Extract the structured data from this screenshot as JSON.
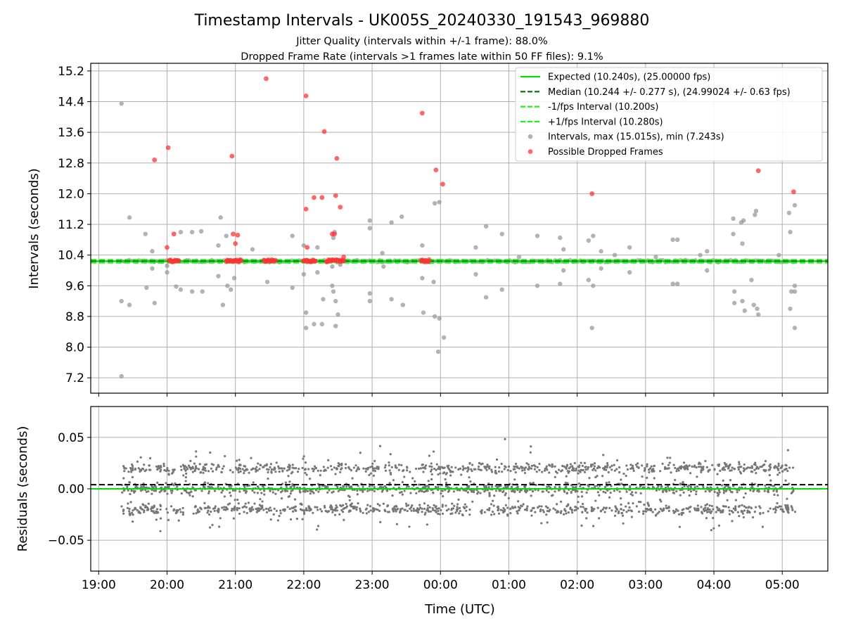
{
  "chart_data": [
    {
      "type": "scatter",
      "title": "Timestamp Intervals - UK005S_20240330_191543_969880",
      "subtitle_1": "Jitter Quality (intervals within +/-1 frame): 88.0%",
      "subtitle_2": "Dropped Frame Rate (intervals >1 frames late within 50 FF files): 9.1%",
      "xlabel": "",
      "ylabel": "Intervals (seconds)",
      "xlim": [
        "18:53",
        "05:40"
      ],
      "ylim": [
        6.8,
        15.4
      ],
      "yticks": [
        "7.2",
        "8.0",
        "8.8",
        "9.6",
        "10.4",
        "11.2",
        "12.0",
        "12.8",
        "13.6",
        "14.4",
        "15.2"
      ],
      "ytick_values": [
        7.2,
        8.0,
        8.8,
        9.6,
        10.4,
        11.2,
        12.0,
        12.8,
        13.6,
        14.4,
        15.2
      ],
      "grid": true,
      "legend_position": "top-right",
      "reference_lines": [
        {
          "name": "Expected (10.240s), (25.00000 fps)",
          "y": 10.24,
          "color": "#00e000",
          "style": "solid"
        },
        {
          "name": "Median (10.244 +/- 0.277 s), (24.99024 +/- 0.63 fps)",
          "y": 10.244,
          "color": "#007000",
          "style": "dashed"
        },
        {
          "name": "-1/fps Interval (10.200s)",
          "y": 10.2,
          "color": "#22ee22",
          "style": "dashed"
        },
        {
          "name": "+1/fps Interval (10.280s)",
          "y": 10.28,
          "color": "#22ee22",
          "style": "dashed"
        }
      ],
      "series": [
        {
          "name": "Intervals, max (15.015s), min (7.243s)",
          "color": "#999999",
          "points": [
            [
              "19:20",
              14.35
            ],
            [
              "19:20",
              7.24
            ],
            [
              "19:20",
              9.2
            ],
            [
              "19:27",
              11.38
            ],
            [
              "19:27",
              9.1
            ],
            [
              "19:41",
              10.95
            ],
            [
              "19:42",
              9.55
            ],
            [
              "19:47",
              10.5
            ],
            [
              "19:47",
              10.05
            ],
            [
              "19:49",
              9.15
            ],
            [
              "20:00",
              10.12
            ],
            [
              "20:00",
              9.95
            ],
            [
              "20:08",
              9.58
            ],
            [
              "20:12",
              11.0
            ],
            [
              "20:12",
              9.5
            ],
            [
              "20:22",
              11.0
            ],
            [
              "20:22",
              9.45
            ],
            [
              "20:30",
              11.02
            ],
            [
              "20:31",
              9.45
            ],
            [
              "20:45",
              10.65
            ],
            [
              "20:45",
              9.85
            ],
            [
              "20:47",
              11.38
            ],
            [
              "20:49",
              9.1
            ],
            [
              "20:52",
              10.9
            ],
            [
              "20:53",
              9.6
            ],
            [
              "20:56",
              9.5
            ],
            [
              "20:59",
              9.8
            ],
            [
              "21:15",
              10.55
            ],
            [
              "21:28",
              9.7
            ],
            [
              "21:50",
              10.9
            ],
            [
              "21:50",
              9.55
            ],
            [
              "22:00",
              10.65
            ],
            [
              "22:00",
              9.9
            ],
            [
              "22:02",
              8.9
            ],
            [
              "22:02",
              8.5
            ],
            [
              "22:09",
              8.6
            ],
            [
              "22:12",
              10.6
            ],
            [
              "22:12",
              9.95
            ],
            [
              "22:16",
              8.6
            ],
            [
              "22:17",
              9.25
            ],
            [
              "22:25",
              10.1
            ],
            [
              "22:25",
              9.6
            ],
            [
              "22:26",
              10.85
            ],
            [
              "22:26",
              9.45
            ],
            [
              "22:27",
              11.0
            ],
            [
              "22:28",
              9.2
            ],
            [
              "22:28",
              8.55
            ],
            [
              "22:30",
              8.85
            ],
            [
              "22:32",
              10.15
            ],
            [
              "22:58",
              11.3
            ],
            [
              "22:58",
              11.1
            ],
            [
              "22:58",
              9.4
            ],
            [
              "22:58",
              9.2
            ],
            [
              "23:09",
              10.45
            ],
            [
              "23:10",
              10.1
            ],
            [
              "23:17",
              11.25
            ],
            [
              "23:17",
              9.25
            ],
            [
              "23:26",
              11.4
            ],
            [
              "23:27",
              9.1
            ],
            [
              "23:44",
              10.65
            ],
            [
              "23:44",
              9.8
            ],
            [
              "23:45",
              8.9
            ],
            [
              "23:54",
              9.7
            ],
            [
              "23:55",
              11.75
            ],
            [
              "23:55",
              8.8
            ],
            [
              "23:58",
              7.88
            ],
            [
              "23:59",
              11.78
            ],
            [
              "23:59",
              8.75
            ],
            [
              "00:03",
              8.25
            ],
            [
              "00:31",
              10.6
            ],
            [
              "00:31",
              9.9
            ],
            [
              "00:40",
              11.15
            ],
            [
              "00:40",
              9.3
            ],
            [
              "00:54",
              10.95
            ],
            [
              "00:54",
              9.5
            ],
            [
              "01:09",
              10.35
            ],
            [
              "01:25",
              10.9
            ],
            [
              "01:25",
              9.6
            ],
            [
              "01:45",
              10.85
            ],
            [
              "01:45",
              9.65
            ],
            [
              "01:48",
              10.55
            ],
            [
              "01:48",
              10.0
            ],
            [
              "02:10",
              10.78
            ],
            [
              "02:10",
              9.75
            ],
            [
              "02:14",
              10.9
            ],
            [
              "02:14",
              9.6
            ],
            [
              "02:13",
              8.5
            ],
            [
              "02:21",
              10.5
            ],
            [
              "02:21",
              10.05
            ],
            [
              "02:33",
              10.4
            ],
            [
              "02:46",
              10.6
            ],
            [
              "02:46",
              9.95
            ],
            [
              "03:09",
              10.35
            ],
            [
              "03:24",
              10.8
            ],
            [
              "03:24",
              9.65
            ],
            [
              "03:28",
              10.8
            ],
            [
              "03:28",
              9.65
            ],
            [
              "03:48",
              10.4
            ],
            [
              "03:54",
              10.5
            ],
            [
              "03:54",
              10.0
            ],
            [
              "04:17",
              11.35
            ],
            [
              "04:17",
              10.95
            ],
            [
              "04:18",
              9.45
            ],
            [
              "04:18",
              9.15
            ],
            [
              "04:24",
              11.25
            ],
            [
              "04:25",
              10.7
            ],
            [
              "04:25",
              9.2
            ],
            [
              "04:26",
              11.3
            ],
            [
              "04:27",
              8.95
            ],
            [
              "04:33",
              9.75
            ],
            [
              "04:35",
              9.1
            ],
            [
              "04:36",
              11.45
            ],
            [
              "04:37",
              11.55
            ],
            [
              "04:38",
              9.0
            ],
            [
              "04:39",
              8.85
            ],
            [
              "04:57",
              10.4
            ],
            [
              "05:06",
              11.5
            ],
            [
              "05:07",
              11.0
            ],
            [
              "05:07",
              9.0
            ],
            [
              "05:08",
              9.45
            ],
            [
              "05:11",
              11.7
            ],
            [
              "05:11",
              9.6
            ],
            [
              "05:11",
              9.45
            ],
            [
              "05:11",
              8.5
            ]
          ]
        },
        {
          "name": "Possible Dropped Frames",
          "color": "#ff3333",
          "points": [
            [
              "19:49",
              12.88
            ],
            [
              "20:00",
              10.6
            ],
            [
              "20:01",
              13.2
            ],
            [
              "20:06",
              10.95
            ],
            [
              "20:57",
              12.98
            ],
            [
              "20:58",
              10.95
            ],
            [
              "21:00",
              10.7
            ],
            [
              "21:02",
              10.92
            ],
            [
              "21:27",
              15.0
            ],
            [
              "22:02",
              14.55
            ],
            [
              "22:02",
              11.6
            ],
            [
              "22:03",
              10.6
            ],
            [
              "22:09",
              11.9
            ],
            [
              "22:16",
              11.9
            ],
            [
              "22:18",
              13.62
            ],
            [
              "22:25",
              10.95
            ],
            [
              "22:27",
              10.95
            ],
            [
              "22:28",
              11.95
            ],
            [
              "22:29",
              12.92
            ],
            [
              "22:32",
              11.65
            ],
            [
              "22:35",
              10.35
            ],
            [
              "23:44",
              14.1
            ],
            [
              "23:56",
              12.62
            ],
            [
              "00:02",
              12.25
            ],
            [
              "02:13",
              12.0
            ],
            [
              "04:39",
              12.6
            ],
            [
              "05:10",
              12.05
            ]
          ],
          "clusters": [
            [
              "20:02",
              "20:10",
              10.25
            ],
            [
              "20:52",
              "21:05",
              10.25
            ],
            [
              "21:25",
              "21:35",
              10.25
            ],
            [
              "22:00",
              "22:10",
              10.25
            ],
            [
              "22:20",
              "22:35",
              10.25
            ],
            [
              "23:43",
              "23:50",
              10.25
            ]
          ]
        }
      ]
    },
    {
      "type": "scatter",
      "title": "",
      "xlabel": "Time (UTC)",
      "ylabel": "Residuals (seconds)",
      "xlim": [
        "18:53",
        "05:40"
      ],
      "ylim": [
        -0.08,
        0.08
      ],
      "xticks": [
        "19:00",
        "20:00",
        "21:00",
        "22:00",
        "23:00",
        "00:00",
        "01:00",
        "02:00",
        "03:00",
        "04:00",
        "05:00"
      ],
      "yticks": [
        "−0.05",
        "0.00",
        "0.05"
      ],
      "ytick_values": [
        -0.05,
        0.0,
        0.05
      ],
      "grid": true,
      "reference_lines": [
        {
          "y": 0.0,
          "color": "#00e000",
          "style": "solid"
        },
        {
          "y": 0.004,
          "color": "#000000",
          "style": "dashed"
        }
      ],
      "series": [
        {
          "color": "#777777",
          "x_range": [
            "19:20",
            "05:12"
          ],
          "count": 2300,
          "bands": [
            {
              "center": 0.02,
              "spread": 0.012
            },
            {
              "center": 0.0,
              "spread": 0.012
            },
            {
              "center": -0.02,
              "spread": 0.012
            }
          ]
        }
      ]
    }
  ],
  "legend": {
    "entries": [
      {
        "label": "Expected (10.240s), (25.00000 fps)",
        "kind": "line",
        "color": "#00e000",
        "dash": false
      },
      {
        "label": "Median (10.244 +/- 0.277 s), (24.99024 +/- 0.63 fps)",
        "kind": "line",
        "color": "#007000",
        "dash": true
      },
      {
        "label": "-1/fps Interval (10.200s)",
        "kind": "line",
        "color": "#22ee22",
        "dash": true
      },
      {
        "label": "+1/fps Interval (10.280s)",
        "kind": "line",
        "color": "#22ee22",
        "dash": true
      },
      {
        "label": "Intervals, max (15.015s), min (7.243s)",
        "kind": "marker",
        "color": "#999999"
      },
      {
        "label": "Possible Dropped Frames",
        "kind": "marker",
        "color": "#ff3333"
      }
    ]
  }
}
